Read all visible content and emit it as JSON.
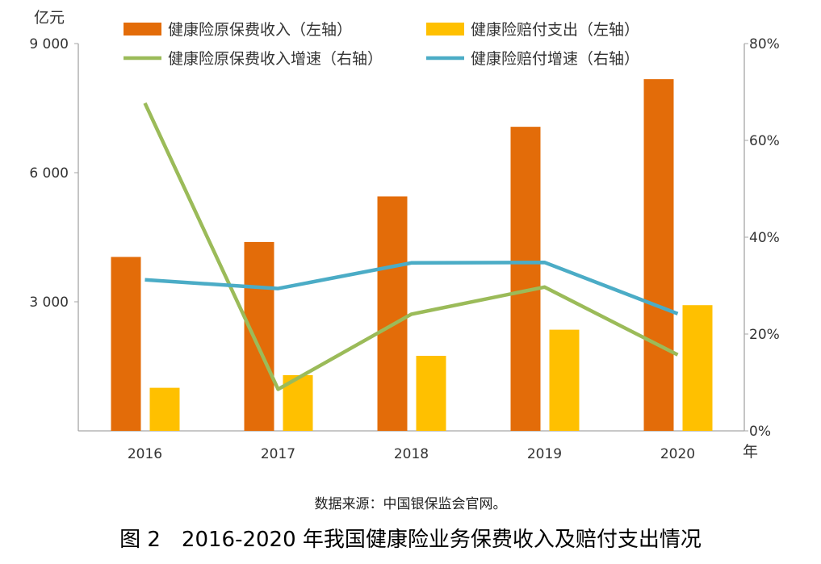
{
  "chart_data": {
    "type": "bar",
    "title": "图 2　2016-2020 年我国健康险业务保费收入及赔付支出情况",
    "source": "数据来源：中国银保监会官网。",
    "xlabel": "年",
    "ylabel": "亿元",
    "categories": [
      "2016",
      "2017",
      "2018",
      "2019",
      "2020"
    ],
    "left_axis": {
      "range": [
        0,
        9000
      ],
      "ticks": [
        3000,
        6000,
        9000
      ],
      "tick_labels": [
        "3 000",
        "6 000",
        "9 000"
      ]
    },
    "right_axis": {
      "range": [
        0,
        80
      ],
      "ticks": [
        0,
        20,
        40,
        60,
        80
      ],
      "tick_labels": [
        "0%",
        "20%",
        "40%",
        "60%",
        "80%"
      ]
    },
    "grid": false,
    "legend_position": "top",
    "series": [
      {
        "name": "健康险原保费收入（左轴）",
        "type": "bar",
        "axis": "left",
        "color": "#E36C09",
        "values": [
          4042,
          4389,
          5448,
          7066,
          8173
        ]
      },
      {
        "name": "健康险赔付支出（左轴）",
        "type": "bar",
        "axis": "left",
        "color": "#FFC000",
        "values": [
          1001,
          1295,
          1744,
          2351,
          2921
        ]
      },
      {
        "name": "健康险原保费收入增速（右轴）",
        "type": "line",
        "axis": "right",
        "color": "#9BBB59",
        "values": [
          67.7,
          8.6,
          24.1,
          29.7,
          15.7
        ]
      },
      {
        "name": "健康险赔付增速（右轴）",
        "type": "line",
        "axis": "right",
        "color": "#4BACC6",
        "values": [
          31.2,
          29.4,
          34.7,
          34.8,
          24.2
        ]
      }
    ]
  }
}
